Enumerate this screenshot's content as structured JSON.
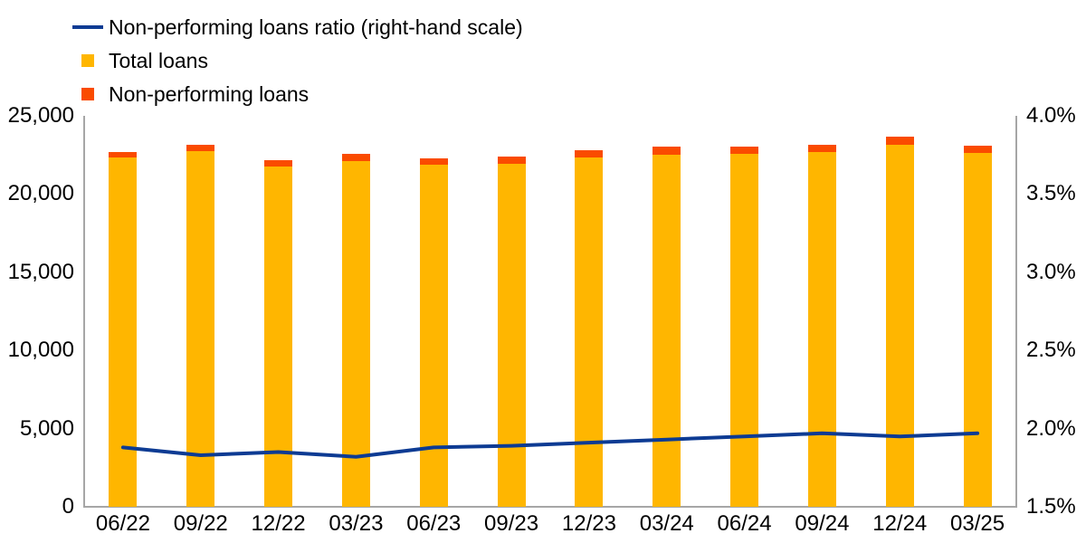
{
  "legend": {
    "items": [
      {
        "label": "Non-performing loans ratio (right-hand scale)",
        "swatch": "line",
        "color": "#0D3B93"
      },
      {
        "label": "Total loans",
        "swatch": "square",
        "color": "#FFB600"
      },
      {
        "label": "Non-performing loans",
        "swatch": "square",
        "color": "#FA4B00"
      }
    ]
  },
  "colors": {
    "axis_line": "#A6A6A6",
    "text": "#000000",
    "background": "#FFFFFF"
  },
  "chart_data": {
    "type": "bar",
    "subtype": "stacked-bars-with-line",
    "title": "",
    "xlabel": "",
    "ylabel_left": "",
    "ylabel_right": "",
    "grid": false,
    "legend_position": "top-left",
    "categories": [
      "06/22",
      "09/22",
      "12/22",
      "03/23",
      "06/23",
      "09/23",
      "12/23",
      "03/24",
      "06/24",
      "09/24",
      "12/24",
      "03/25"
    ],
    "series": [
      {
        "name": "Total loans",
        "type": "bar",
        "stack": "loans",
        "axis": "left",
        "color": "#FFB600",
        "values": [
          22320,
          22740,
          21760,
          22120,
          21860,
          21950,
          22320,
          22530,
          22570,
          22660,
          23150,
          22630
        ]
      },
      {
        "name": "Non-performing loans",
        "type": "bar",
        "stack": "loans",
        "axis": "left",
        "color": "#FA4B00",
        "values": [
          380,
          410,
          420,
          430,
          420,
          450,
          480,
          520,
          440,
          490,
          520,
          460
        ]
      },
      {
        "name": "Non-performing loans ratio (right-hand scale)",
        "type": "line",
        "axis": "right",
        "color": "#0D3B93",
        "values": [
          1.88,
          1.83,
          1.85,
          1.82,
          1.88,
          1.89,
          1.91,
          1.93,
          1.95,
          1.97,
          1.95,
          1.97
        ]
      }
    ],
    "left_axis": {
      "min": 0,
      "max": 25000,
      "ticks": [
        {
          "value": 0,
          "label": "0"
        },
        {
          "value": 5000,
          "label": "5,000"
        },
        {
          "value": 10000,
          "label": "10,000"
        },
        {
          "value": 15000,
          "label": "15,000"
        },
        {
          "value": 20000,
          "label": "20,000"
        },
        {
          "value": 25000,
          "label": "25,000"
        }
      ]
    },
    "right_axis": {
      "min": 1.5,
      "max": 4.0,
      "ticks": [
        {
          "value": 1.5,
          "label": "1.5%"
        },
        {
          "value": 2.0,
          "label": "2.0%"
        },
        {
          "value": 2.5,
          "label": "2.5%"
        },
        {
          "value": 3.0,
          "label": "3.0%"
        },
        {
          "value": 3.5,
          "label": "3.5%"
        },
        {
          "value": 4.0,
          "label": "4.0%"
        }
      ]
    }
  }
}
